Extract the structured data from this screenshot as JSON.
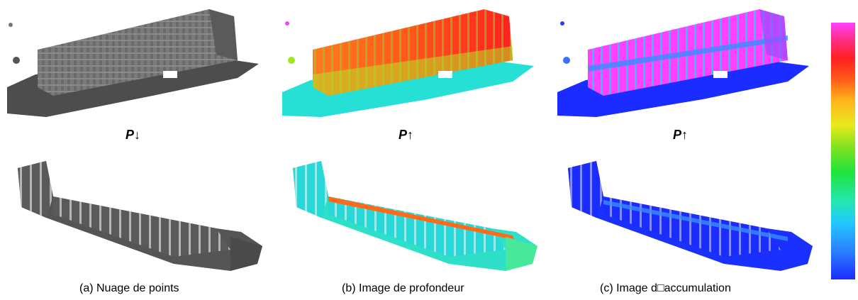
{
  "figure": {
    "arrow_labels": [
      "P↓",
      "P↑",
      "P↑"
    ],
    "captions": [
      "(a) Nuage de points",
      "(b) Image de profondeur",
      "(c) Image d□accumulation"
    ],
    "colorbar": {
      "colors": [
        "#1a2cff",
        "#22c8ff",
        "#20e43a",
        "#e8e91c",
        "#ff5a1a",
        "#ff2020",
        "#ff40ff"
      ]
    },
    "panels": [
      {
        "name": "point-cloud-top-view",
        "style": "grayscale"
      },
      {
        "name": "depth-image-top-view",
        "style": "depth colormap"
      },
      {
        "name": "accumulation-image-top-view",
        "style": "accumulation colormap"
      },
      {
        "name": "point-cloud-bottom-view",
        "style": "grayscale"
      },
      {
        "name": "depth-image-bottom-view",
        "style": "depth colormap"
      },
      {
        "name": "accumulation-image-bottom-view",
        "style": "accumulation colormap"
      }
    ]
  }
}
